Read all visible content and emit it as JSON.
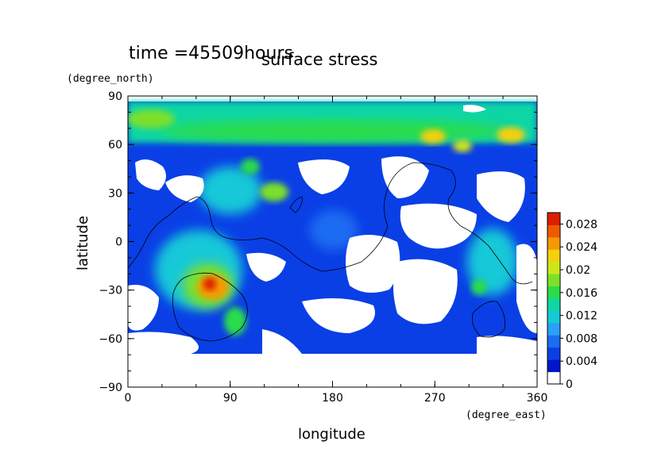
{
  "chart_data": {
    "type": "heatmap",
    "title": "surface stress",
    "time_label": "time =45509hours",
    "xlabel": "longitude",
    "ylabel": "latitude",
    "x_unit": "(degree_east)",
    "y_unit": "(degree_north)",
    "xlim": [
      0,
      360
    ],
    "ylim": [
      -90,
      90
    ],
    "x_ticks": [
      "0",
      "90",
      "180",
      "270",
      "360"
    ],
    "y_ticks": [
      "90",
      "60",
      "30",
      "0",
      "−30",
      "−60",
      "−90"
    ],
    "colorbar": {
      "min": 0,
      "max": 0.03,
      "tick_labels": [
        "0.028",
        "0.024",
        "0.02",
        "0.016",
        "0.012",
        "0.008",
        "0.004",
        "0"
      ],
      "colors": [
        "#ffffff",
        "#0016cc",
        "#0a3fe6",
        "#1c6cf2",
        "#2aa0f6",
        "#16c8d8",
        "#10d6a4",
        "#2cdc4c",
        "#7ce02a",
        "#cce61c",
        "#f4d00e",
        "#f49a06",
        "#ee5a00",
        "#dc1e00"
      ]
    },
    "grid": false,
    "legend": "right colorbar"
  }
}
